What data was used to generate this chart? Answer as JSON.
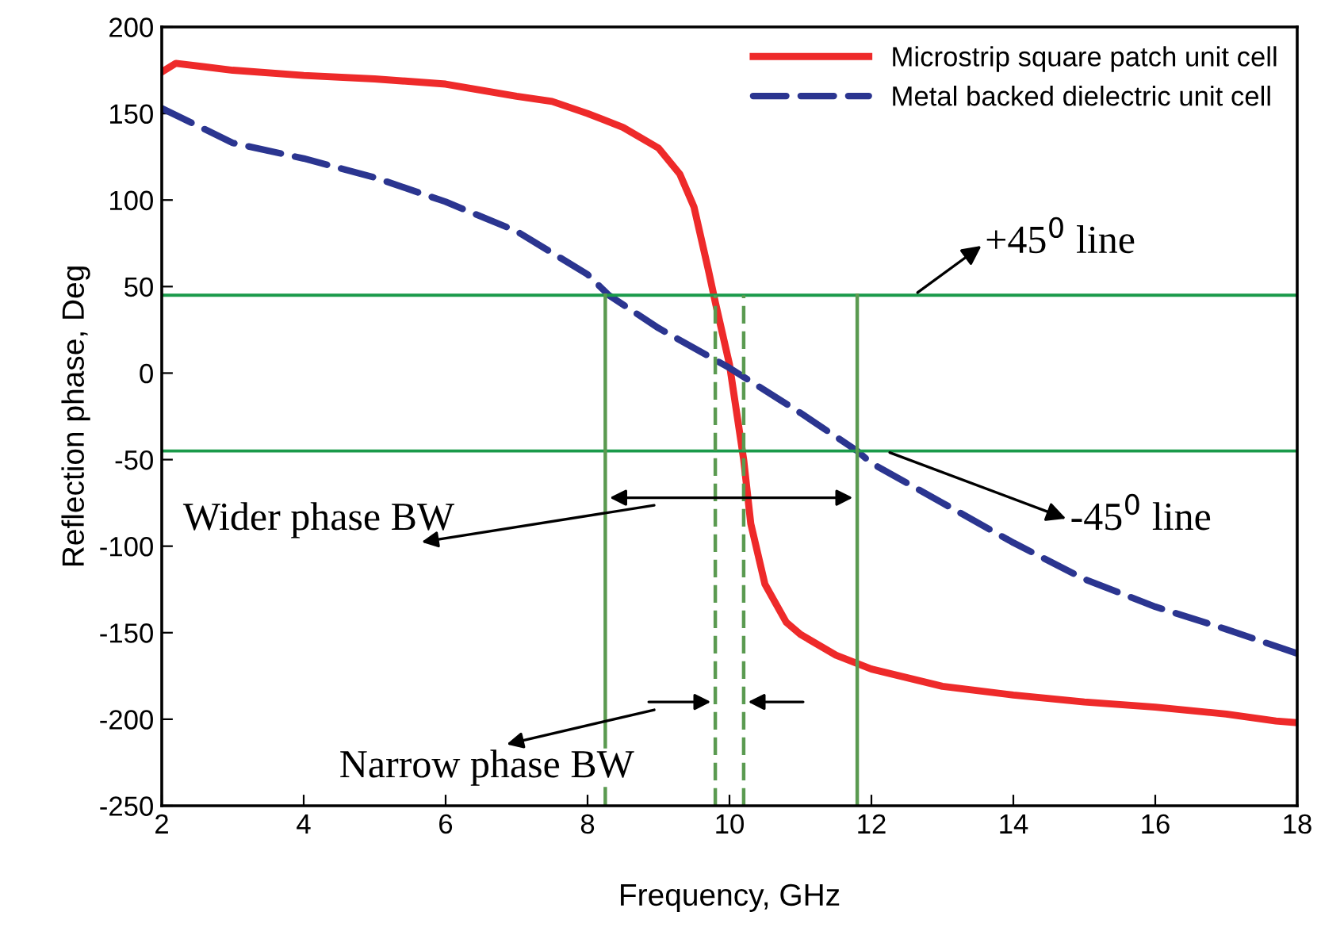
{
  "chart_data": {
    "type": "line",
    "xlabel": "Frequency, GHz",
    "ylabel": "Reflection phase, Deg",
    "xlim": [
      2,
      18
    ],
    "xticks": [
      2,
      4,
      6,
      8,
      10,
      12,
      14,
      16,
      18
    ],
    "ylim": [
      -250,
      200
    ],
    "yticks": [
      -250,
      -200,
      -150,
      -100,
      -50,
      0,
      50,
      100,
      150,
      200
    ],
    "grid": false,
    "legend": "top right",
    "series": [
      {
        "name": "Microstrip square patch unit cell",
        "color": "#ee2a2a",
        "line_style": "solid",
        "x": [
          2,
          2.2,
          3,
          4,
          5,
          6,
          7,
          7.5,
          8,
          8.5,
          9,
          9.3,
          9.5,
          9.7,
          9.8,
          10,
          10.2,
          10.3,
          10.5,
          10.8,
          11,
          11.5,
          12,
          13,
          14,
          15,
          16,
          17,
          17.7,
          18
        ],
        "values": [
          174,
          179,
          175,
          172,
          170,
          167,
          160,
          157,
          150,
          142,
          130,
          115,
          96,
          60,
          41,
          5,
          -50,
          -87,
          -122,
          -144,
          -151,
          -163,
          -171,
          -181,
          -186,
          -190,
          -193,
          -197,
          -201,
          -202
        ]
      },
      {
        "name": "Metal backed dielectric unit cell",
        "color": "#2b3590",
        "line_style": "dashed",
        "x": [
          2,
          3,
          4,
          5,
          6,
          7,
          8,
          8.3,
          9,
          10,
          11,
          11.8,
          12,
          13,
          14,
          15,
          16,
          17,
          18
        ],
        "values": [
          153,
          133,
          124,
          113,
          99,
          82,
          57,
          45,
          26,
          3,
          -23,
          -45,
          -52,
          -75,
          -98,
          -119,
          -135,
          -148,
          -162
        ]
      }
    ],
    "ref_lines": [
      {
        "axis": "y",
        "value": 45,
        "label": "+45$^{0}$ line",
        "color": "#1a9a4a"
      },
      {
        "axis": "y",
        "value": -45,
        "label": "-45$^{0}$ line",
        "color": "#1a9a4a"
      },
      {
        "axis": "x",
        "value": 8.25,
        "color": "#5a9a50",
        "line_style": "solid"
      },
      {
        "axis": "x",
        "value": 11.8,
        "color": "#5a9a50",
        "line_style": "solid"
      },
      {
        "axis": "x",
        "value": 9.8,
        "color": "#5a9a50",
        "line_style": "dashed"
      },
      {
        "axis": "x",
        "value": 10.2,
        "color": "#5a9a50",
        "line_style": "dashed"
      }
    ],
    "annotations": [
      "Wider phase BW",
      "Narrow phase BW"
    ]
  }
}
